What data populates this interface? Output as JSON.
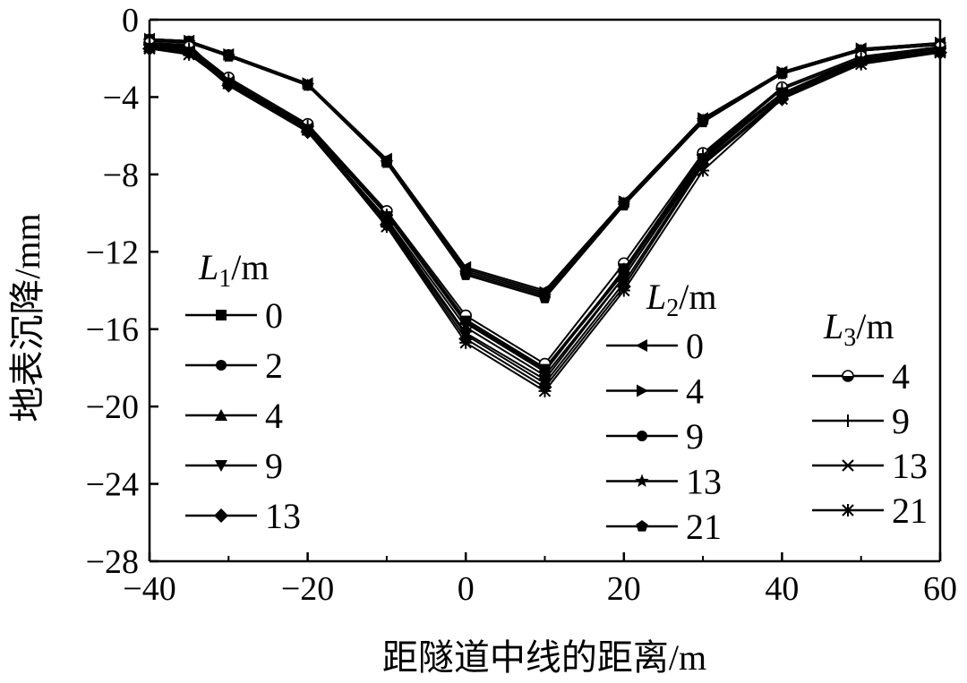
{
  "chart_data": {
    "type": "line",
    "title": "",
    "xlabel": "距隧道中线的距离/m",
    "ylabel": "地表沉降/mm",
    "xlim": [
      -40,
      60
    ],
    "ylim": [
      -28,
      0
    ],
    "x_ticks": [
      -40,
      -20,
      0,
      20,
      40,
      60
    ],
    "y_ticks": [
      0,
      -4,
      -8,
      -12,
      -16,
      -20,
      -24,
      -28
    ],
    "x_tick_labels": [
      "−40",
      "−20",
      "0",
      "20",
      "40",
      "60"
    ],
    "y_tick_labels": [
      "0",
      "−4",
      "−8",
      "−12",
      "−16",
      "−20",
      "−24",
      "−28"
    ],
    "grid": false,
    "x": [
      -40,
      -35,
      -30,
      -20,
      -10,
      0,
      10,
      20,
      30,
      40,
      50,
      60
    ],
    "legend_groups": [
      {
        "title_var": "L",
        "title_sub": "1",
        "title_unit": "/m",
        "placement": "left",
        "series": [
          {
            "name": "0",
            "marker": "square",
            "values": [
              -1.2,
              -1.3,
              -3.2,
              -5.5,
              -10.0,
              -15.5,
              -18.0,
              -13.0,
              -7.0,
              -3.8,
              -2.0,
              -1.5
            ]
          },
          {
            "name": "2",
            "marker": "circle",
            "values": [
              -1.3,
              -1.4,
              -3.3,
              -5.6,
              -10.1,
              -15.6,
              -18.1,
              -13.1,
              -7.1,
              -3.9,
              -2.0,
              -1.5
            ]
          },
          {
            "name": "4",
            "marker": "triangle-up",
            "values": [
              -1.4,
              -1.5,
              -3.3,
              -5.7,
              -10.3,
              -15.9,
              -18.4,
              -13.3,
              -7.2,
              -3.9,
              -2.1,
              -1.6
            ]
          },
          {
            "name": "9",
            "marker": "triangle-down",
            "values": [
              -1.5,
              -1.6,
              -3.4,
              -5.8,
              -10.5,
              -16.3,
              -18.8,
              -13.6,
              -7.4,
              -4.0,
              -2.2,
              -1.6
            ]
          },
          {
            "name": "13",
            "marker": "diamond",
            "values": [
              -1.5,
              -1.7,
              -3.4,
              -5.8,
              -10.6,
              -16.5,
              -19.0,
              -13.8,
              -7.5,
              -4.1,
              -2.2,
              -1.7
            ]
          }
        ]
      },
      {
        "title_var": "L",
        "title_sub": "2",
        "title_unit": "/m",
        "placement": "center",
        "series": [
          {
            "name": "0",
            "marker": "triangle-left",
            "values": [
              -1.0,
              -1.1,
              -1.8,
              -3.3,
              -7.2,
              -12.8,
              -14.0,
              -9.4,
              -5.1,
              -2.7,
              -1.5,
              -1.2
            ]
          },
          {
            "name": "4",
            "marker": "triangle-right",
            "values": [
              -1.0,
              -1.1,
              -1.8,
              -3.3,
              -7.3,
              -12.9,
              -14.1,
              -9.4,
              -5.1,
              -2.7,
              -1.5,
              -1.2
            ]
          },
          {
            "name": "9",
            "marker": "circle",
            "values": [
              -1.0,
              -1.1,
              -1.8,
              -3.4,
              -7.3,
              -13.0,
              -14.2,
              -9.5,
              -5.2,
              -2.8,
              -1.6,
              -1.3
            ]
          },
          {
            "name": "13",
            "marker": "star",
            "values": [
              -1.1,
              -1.2,
              -1.9,
              -3.4,
              -7.4,
              -13.1,
              -14.3,
              -9.5,
              -5.2,
              -2.8,
              -1.6,
              -1.3
            ]
          },
          {
            "name": "21",
            "marker": "pentagon",
            "values": [
              -1.1,
              -1.2,
              -1.9,
              -3.4,
              -7.4,
              -13.2,
              -14.4,
              -9.6,
              -5.3,
              -2.8,
              -1.6,
              -1.3
            ]
          }
        ]
      },
      {
        "title_var": "L",
        "title_sub": "3",
        "title_unit": "/m",
        "placement": "right",
        "series": [
          {
            "name": "4",
            "marker": "half-circle",
            "values": [
              -1.2,
              -1.4,
              -3.0,
              -5.4,
              -9.9,
              -15.3,
              -17.8,
              -12.6,
              -6.9,
              -3.5,
              -1.9,
              -1.4
            ]
          },
          {
            "name": "9",
            "marker": "plus",
            "values": [
              -1.3,
              -1.5,
              -3.1,
              -5.5,
              -10.1,
              -15.7,
              -18.2,
              -12.9,
              -7.0,
              -3.6,
              -2.0,
              -1.5
            ]
          },
          {
            "name": "13",
            "marker": "x",
            "values": [
              -1.4,
              -1.6,
              -3.2,
              -5.6,
              -10.4,
              -16.2,
              -18.6,
              -13.3,
              -7.3,
              -3.8,
              -2.1,
              -1.6
            ]
          },
          {
            "name": "21",
            "marker": "asterisk",
            "values": [
              -1.5,
              -1.8,
              -3.3,
              -5.7,
              -10.7,
              -16.7,
              -19.2,
              -14.0,
              -7.8,
              -4.1,
              -2.3,
              -1.7
            ]
          }
        ]
      }
    ]
  }
}
